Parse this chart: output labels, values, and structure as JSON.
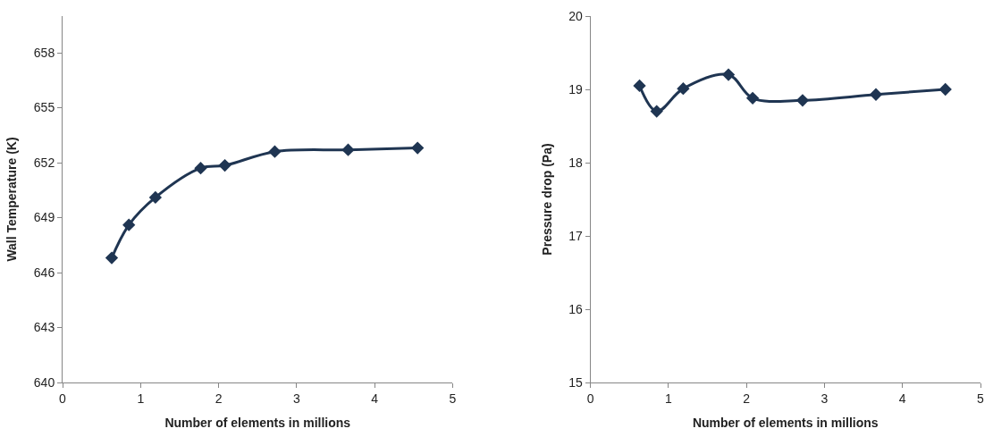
{
  "chart_data": [
    {
      "type": "line",
      "xlabel": "Number of elements in millions",
      "ylabel": "Wall Temperature (K)",
      "x": [
        0.63,
        0.85,
        1.19,
        1.77,
        2.08,
        2.72,
        3.66,
        4.55
      ],
      "series": [
        {
          "color": "#1f3552",
          "values": [
            646.8,
            648.6,
            650.1,
            651.7,
            651.85,
            652.6,
            652.7,
            652.8
          ]
        }
      ],
      "xlim": [
        0,
        5
      ],
      "xticks": [
        0,
        1,
        2,
        3,
        4,
        5
      ],
      "ylim": [
        640,
        660
      ],
      "yticks": [
        640,
        643,
        646,
        649,
        652,
        655,
        658
      ],
      "marker": "diamond",
      "line_style": "solid"
    },
    {
      "type": "line",
      "xlabel": "Number of elements in millions",
      "ylabel": "Pressure drop (Pa)",
      "x": [
        0.63,
        0.85,
        1.19,
        1.77,
        2.08,
        2.72,
        3.66,
        4.55
      ],
      "series": [
        {
          "color": "#1f3552",
          "values": [
            19.05,
            18.7,
            19.01,
            19.2,
            18.88,
            18.85,
            18.93,
            19.0
          ]
        }
      ],
      "xlim": [
        0,
        5
      ],
      "xticks": [
        0,
        1,
        2,
        3,
        4,
        5
      ],
      "ylim": [
        15,
        20
      ],
      "yticks": [
        15,
        16,
        17,
        18,
        19,
        20
      ],
      "marker": "diamond",
      "line_style": "solid"
    }
  ]
}
